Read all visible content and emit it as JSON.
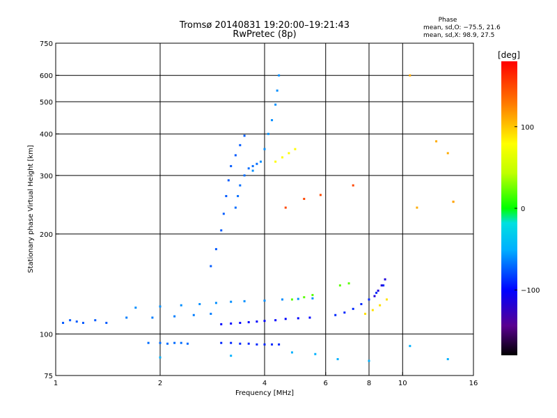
{
  "chart_data": {
    "type": "scatter",
    "title": "Tromsø 20140831 19:20:00–19:21:43",
    "subtitle": "RwPretec (8p)",
    "xlabel": "Frequency [MHz]",
    "ylabel": "Stationary phase Virtual Height [km]",
    "x_scale": "log",
    "y_scale": "log",
    "xlim": [
      1,
      16
    ],
    "ylim": [
      75,
      750
    ],
    "x_ticks": [
      1,
      2,
      4,
      6,
      8,
      10,
      16
    ],
    "x_tick_labels": [
      "1",
      "2",
      "4",
      "6",
      "8",
      "10",
      "16"
    ],
    "x_grid": [
      2,
      4,
      6,
      8,
      10
    ],
    "y_ticks": [
      75,
      100,
      200,
      300,
      400,
      500,
      600,
      750
    ],
    "y_tick_labels": [
      "75",
      "100",
      "200",
      "300",
      "400",
      "500",
      "600",
      "750"
    ],
    "y_grid": [
      100,
      200,
      300,
      400,
      500,
      600
    ],
    "grid": true,
    "color_by": "phase",
    "phase_stats": {
      "title": "Phase",
      "lines": [
        "mean, sd,O: −75.5, 21.6",
        "mean, sd,X:  98.9, 27.5"
      ]
    },
    "colorbar": {
      "label": "[deg]",
      "range": [
        -180,
        180
      ],
      "ticks": [
        100,
        0,
        -100
      ],
      "tick_labels": [
        "100",
        "0",
        "−100"
      ],
      "placement": "right"
    },
    "traces": [
      {
        "phase": -75,
        "points": [
          [
            1.05,
            108
          ],
          [
            1.1,
            110
          ],
          [
            1.15,
            109
          ],
          [
            1.2,
            108
          ],
          [
            1.3,
            110
          ],
          [
            1.4,
            108
          ]
        ]
      },
      {
        "phase": -70,
        "points": [
          [
            1.85,
            94
          ],
          [
            2.0,
            94
          ],
          [
            2.1,
            93.5
          ],
          [
            2.2,
            94
          ],
          [
            2.3,
            94
          ],
          [
            2.4,
            93.5
          ]
        ]
      },
      {
        "phase": -90,
        "points": [
          [
            3.0,
            94
          ],
          [
            3.2,
            94
          ],
          [
            3.4,
            93.5
          ],
          [
            3.6,
            93.5
          ],
          [
            3.8,
            93
          ],
          [
            4.0,
            93
          ],
          [
            4.2,
            93
          ],
          [
            4.4,
            93
          ]
        ]
      },
      {
        "phase": -100,
        "points": [
          [
            3.0,
            107
          ],
          [
            3.2,
            107.5
          ],
          [
            3.4,
            108
          ],
          [
            3.6,
            108.5
          ],
          [
            3.8,
            109
          ],
          [
            4.0,
            109.5
          ],
          [
            4.3,
            110
          ],
          [
            4.6,
            111
          ],
          [
            5.0,
            111.5
          ],
          [
            5.4,
            112
          ]
        ]
      },
      {
        "phase": -60,
        "points": [
          [
            1.7,
            120
          ],
          [
            2.0,
            121
          ],
          [
            2.3,
            122
          ],
          [
            2.6,
            123
          ],
          [
            2.9,
            124
          ],
          [
            3.2,
            125
          ],
          [
            3.5,
            125.5
          ],
          [
            4.0,
            126
          ],
          [
            4.5,
            127
          ],
          [
            5.0,
            127.5
          ],
          [
            5.5,
            128
          ]
        ]
      },
      {
        "phase": -65,
        "points": [
          [
            1.6,
            112
          ],
          [
            1.9,
            112
          ],
          [
            2.2,
            113
          ],
          [
            2.5,
            114
          ],
          [
            2.8,
            115
          ]
        ]
      },
      {
        "phase": -75,
        "points": [
          [
            2.8,
            160
          ],
          [
            2.9,
            180
          ],
          [
            3.0,
            205
          ],
          [
            3.05,
            230
          ],
          [
            3.1,
            260
          ],
          [
            3.15,
            290
          ],
          [
            3.2,
            320
          ],
          [
            3.3,
            345
          ],
          [
            3.4,
            370
          ],
          [
            3.5,
            395
          ]
        ]
      },
      {
        "phase": -70,
        "points": [
          [
            3.3,
            240
          ],
          [
            3.35,
            260
          ],
          [
            3.4,
            280
          ],
          [
            3.5,
            300
          ],
          [
            3.6,
            315
          ],
          [
            3.7,
            320
          ],
          [
            3.8,
            325
          ]
        ]
      },
      {
        "phase": -60,
        "points": [
          [
            3.7,
            310
          ],
          [
            3.9,
            330
          ],
          [
            4.0,
            360
          ],
          [
            4.1,
            400
          ],
          [
            4.2,
            440
          ],
          [
            4.3,
            490
          ],
          [
            4.35,
            540
          ],
          [
            4.4,
            600
          ]
        ]
      },
      {
        "phase": 80,
        "points": [
          [
            4.3,
            330
          ],
          [
            4.5,
            340
          ],
          [
            4.7,
            350
          ],
          [
            4.9,
            360
          ]
        ]
      },
      {
        "phase": -90,
        "points": [
          [
            6.4,
            114
          ],
          [
            6.8,
            116
          ],
          [
            7.2,
            119
          ],
          [
            7.6,
            123
          ],
          [
            8.0,
            127
          ],
          [
            8.4,
            133
          ],
          [
            8.8,
            140
          ]
        ]
      },
      {
        "phase": -115,
        "points": [
          [
            8.3,
            130
          ],
          [
            8.5,
            135
          ],
          [
            8.7,
            140
          ],
          [
            8.9,
            146
          ]
        ]
      },
      {
        "phase": 90,
        "points": [
          [
            7.8,
            115
          ],
          [
            8.2,
            118
          ],
          [
            8.6,
            122
          ],
          [
            9.0,
            127
          ]
        ]
      },
      {
        "phase": 20,
        "points": [
          [
            4.8,
            127
          ],
          [
            5.2,
            129
          ],
          [
            5.5,
            131
          ],
          [
            6.6,
            140
          ],
          [
            7.0,
            142
          ]
        ]
      },
      {
        "phase": 150,
        "points": [
          [
            4.6,
            240
          ],
          [
            5.2,
            255
          ],
          [
            5.8,
            262
          ],
          [
            7.2,
            280
          ],
          [
            14.0,
            250
          ]
        ]
      },
      {
        "phase": -50,
        "points": [
          [
            2.0,
            85
          ],
          [
            3.2,
            86
          ],
          [
            4.8,
            88
          ],
          [
            5.6,
            87
          ],
          [
            6.5,
            84
          ],
          [
            8.0,
            83
          ],
          [
            10.5,
            92
          ],
          [
            13.5,
            84
          ]
        ]
      },
      {
        "phase": 110,
        "points": [
          [
            10.5,
            600
          ],
          [
            12.5,
            380
          ],
          [
            13.5,
            350
          ],
          [
            14.0,
            250
          ],
          [
            11.0,
            240
          ]
        ]
      }
    ]
  }
}
